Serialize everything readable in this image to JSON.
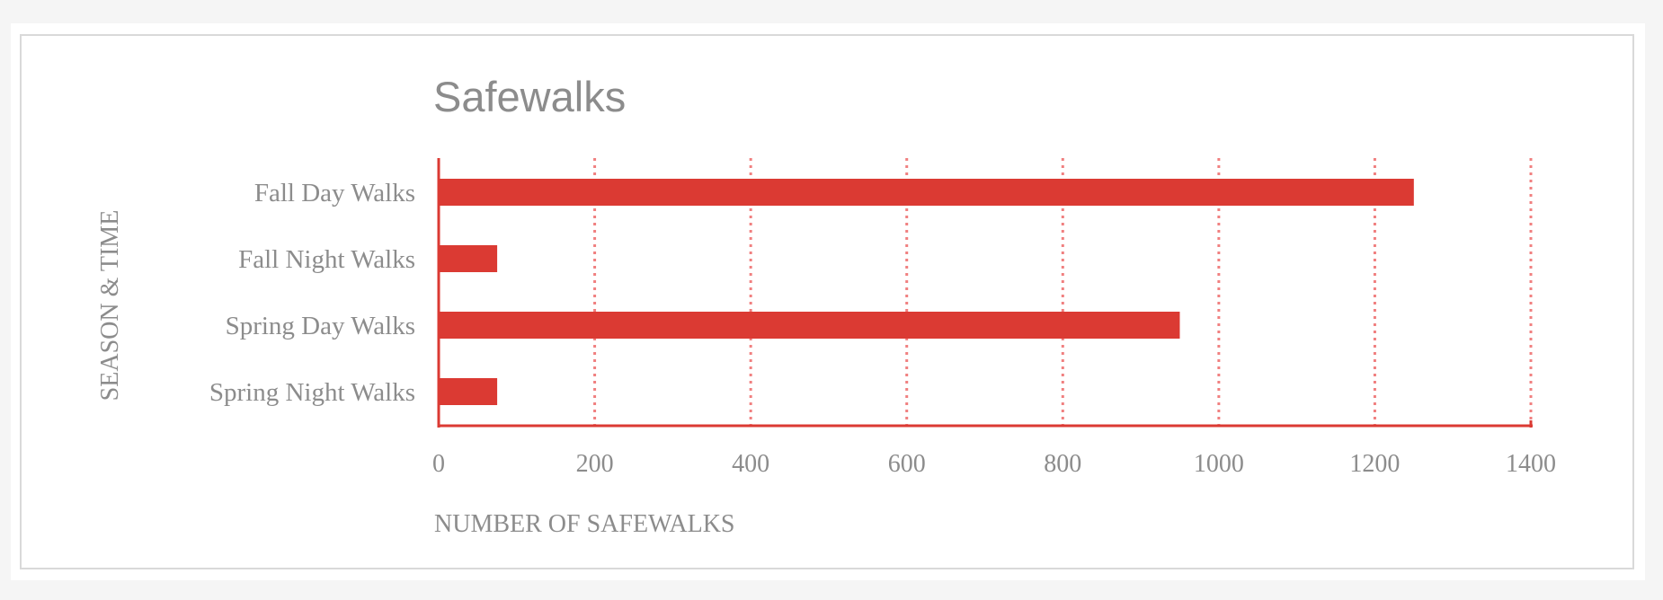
{
  "chart_data": {
    "type": "bar",
    "orientation": "horizontal",
    "title": "Safewalks",
    "xlabel": "NUMBER OF SAFEWALKS",
    "ylabel": "SEASON & TIME",
    "categories": [
      "Fall Day Walks",
      "Fall Night Walks",
      "Spring Day Walks",
      "Spring Night Walks"
    ],
    "values": [
      1250,
      75,
      950,
      75
    ],
    "xlim": [
      0,
      1400
    ],
    "xticks": [
      0,
      200,
      400,
      600,
      800,
      1000,
      1200,
      1400
    ],
    "xtick_labels": [
      "0",
      "200",
      "400",
      "600",
      "800",
      "1000",
      "1200",
      "1400"
    ],
    "grid": "vertical dotted",
    "legend": "none",
    "bar_color": "#db3a33",
    "grid_color": "#f08080",
    "text_color": "#8c8c8c"
  }
}
